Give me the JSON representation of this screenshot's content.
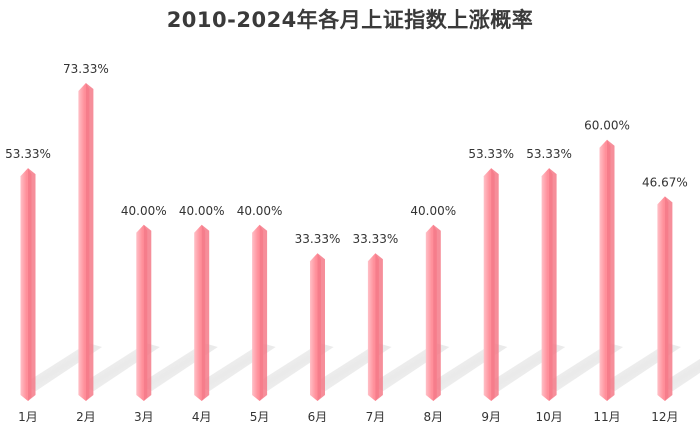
{
  "chart_data": {
    "type": "bar",
    "title": "2010-2024年各月上证指数上涨概率",
    "xlabel": "",
    "ylabel": "",
    "categories": [
      "1月",
      "2月",
      "3月",
      "4月",
      "5月",
      "6月",
      "7月",
      "8月",
      "9月",
      "10月",
      "11月",
      "12月"
    ],
    "values": [
      53.33,
      73.33,
      40.0,
      40.0,
      40.0,
      33.33,
      33.33,
      40.0,
      53.33,
      53.33,
      60.0,
      46.67
    ],
    "value_labels": [
      "53.33%",
      "73.33%",
      "40.00%",
      "40.00%",
      "40.00%",
      "33.33%",
      "33.33%",
      "40.00%",
      "53.33%",
      "53.33%",
      "60.00%",
      "46.67%"
    ],
    "ylim": [
      0,
      80
    ],
    "grid": false,
    "legend": "none",
    "colors": {
      "bar_front": "#ff8f9a",
      "bar_side": "#f57a88",
      "bar_highlight": "#ffc0c7",
      "shadow": "#d4d4d4",
      "text": "#333333"
    }
  }
}
